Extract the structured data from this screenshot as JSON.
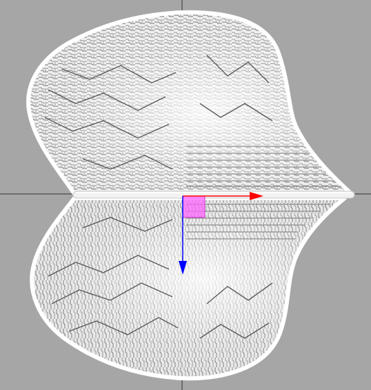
{
  "viewport": {
    "background_color": "#a6a6a6",
    "crosshair_color": "#333333",
    "mesh": {
      "fill_light": "#f7f7f7",
      "fill_mid": "#d9d9d9",
      "stroke_dark": "#4d4d4d",
      "outline": "#ffffff"
    },
    "rod_color": "#f2f2f2",
    "gizmo": {
      "x_axis_color": "#ff0000",
      "y_axis_color": "#0000ff",
      "plane_handle_color": "#ff66ff"
    }
  }
}
